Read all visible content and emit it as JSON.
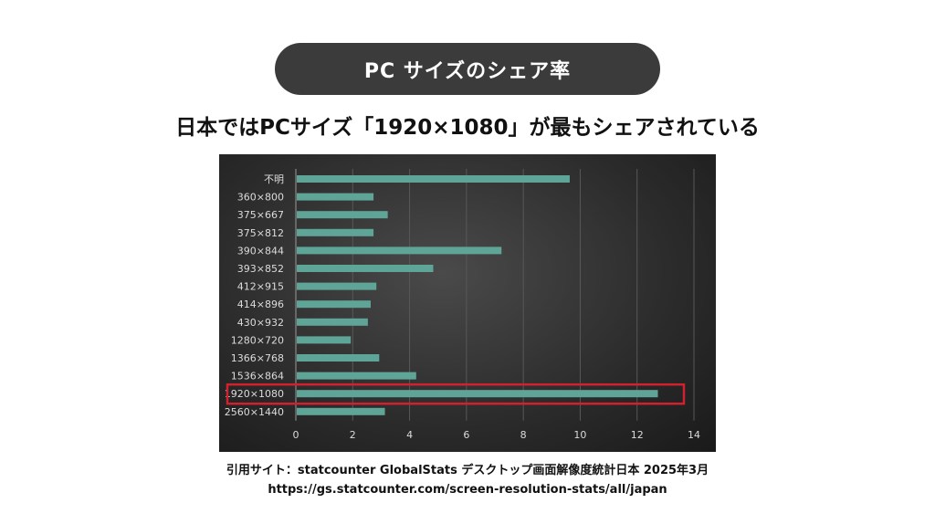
{
  "header": {
    "pill_title": "PC サイズのシェア率",
    "headline": "日本ではPCサイズ「1920×1080」が最もシェアされている"
  },
  "source": {
    "citation": "引用サイト：statcounter GlobalStats デスクトップ画面解像度統計日本 2025年3月",
    "url": "https://gs.statcounter.com/screen-resolution-stats/all/japan"
  },
  "colors": {
    "bar": "#5fa597",
    "highlight": "#d0212f",
    "chart_bg": "#2e2e2e"
  },
  "chart_data": {
    "type": "bar",
    "orientation": "horizontal",
    "categories": [
      "不明",
      "360×800",
      "375×667",
      "375×812",
      "390×844",
      "393×852",
      "412×915",
      "414×896",
      "430×932",
      "1280×720",
      "1366×768",
      "1536×864",
      "1920×1080",
      "2560×1440"
    ],
    "values": [
      9.6,
      2.7,
      3.2,
      2.7,
      7.2,
      4.8,
      2.8,
      2.6,
      2.5,
      1.9,
      2.9,
      4.2,
      12.7,
      3.1
    ],
    "xlim": [
      0,
      14
    ],
    "xticks": [
      0,
      2,
      4,
      6,
      8,
      10,
      12,
      14
    ],
    "highlighted_category": "1920×1080",
    "grid": true
  }
}
